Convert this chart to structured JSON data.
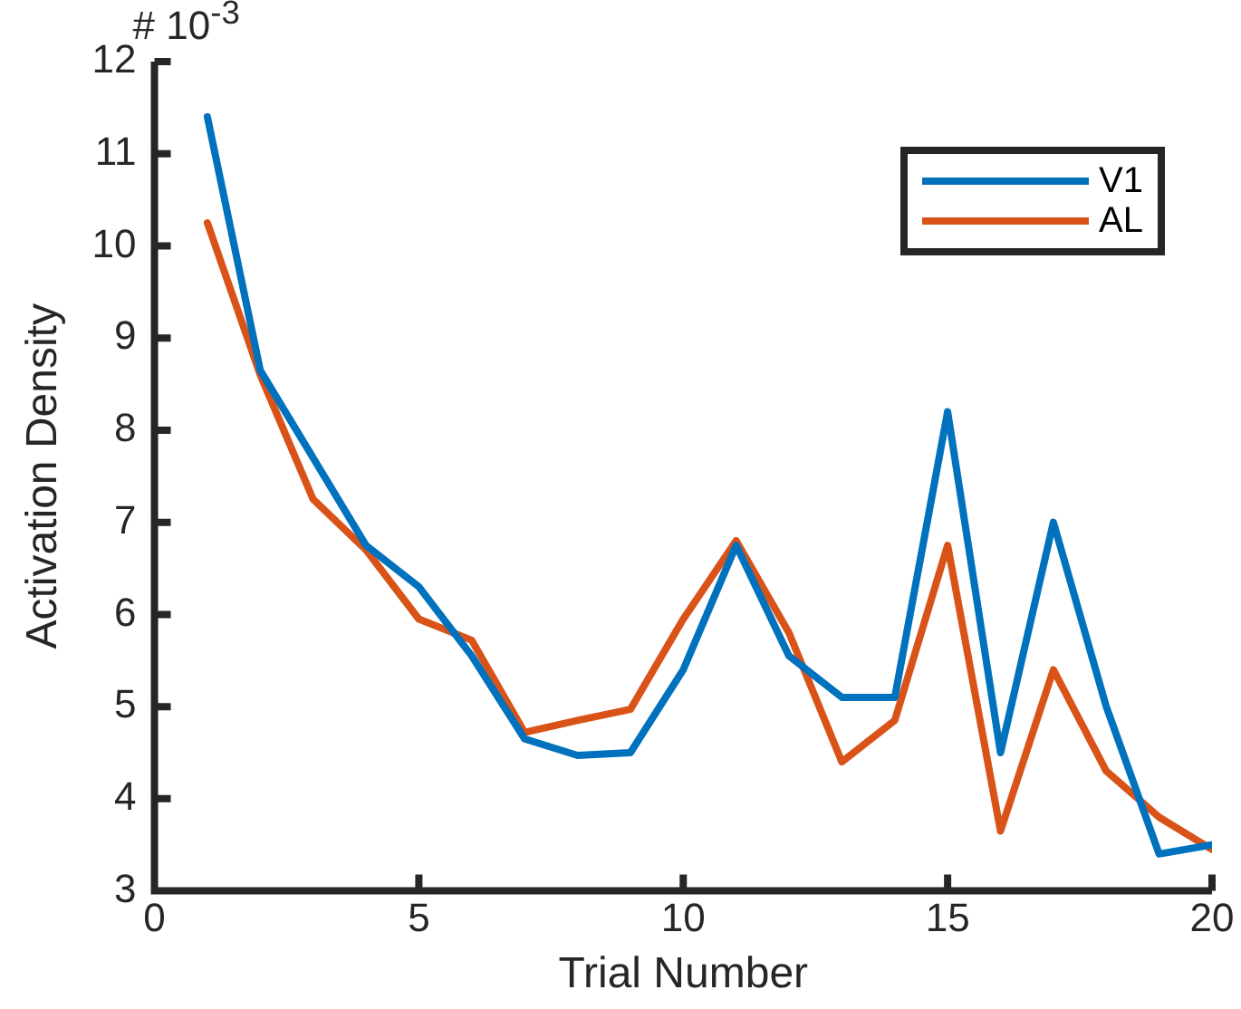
{
  "chart_data": {
    "type": "line",
    "xlabel": "Trial Number",
    "ylabel": "Activation Density",
    "annotations": [
      "# 10$^{-3}$"
    ],
    "x": [
      1,
      2,
      3,
      4,
      5,
      6,
      7,
      8,
      9,
      10,
      11,
      12,
      13,
      14,
      15,
      16,
      17,
      18,
      19,
      20
    ],
    "series": [
      {
        "name": "V1",
        "color": "#0072bd",
        "values": [
          11.4,
          8.65,
          7.7,
          6.75,
          6.3,
          5.55,
          4.65,
          4.47,
          4.5,
          5.4,
          6.75,
          5.55,
          5.1,
          5.1,
          8.2,
          4.5,
          7.0,
          5.0,
          3.4,
          3.5
        ]
      },
      {
        "name": "AL",
        "color": "#d95319",
        "values": [
          10.25,
          8.6,
          7.25,
          6.7,
          5.95,
          5.72,
          4.72,
          4.85,
          4.97,
          5.95,
          6.8,
          5.8,
          4.4,
          4.85,
          6.75,
          3.65,
          5.4,
          4.3,
          3.8,
          3.45
        ]
      }
    ],
    "xlim": [
      0,
      20
    ],
    "xticks": [
      0,
      5,
      10,
      15,
      20
    ],
    "ylim": [
      3,
      12
    ],
    "yticks": [
      3,
      4,
      5,
      6,
      7,
      8,
      9,
      10,
      11,
      12
    ],
    "grid": false,
    "legend": "top right",
    "marker": "none",
    "line_style": "solid"
  }
}
